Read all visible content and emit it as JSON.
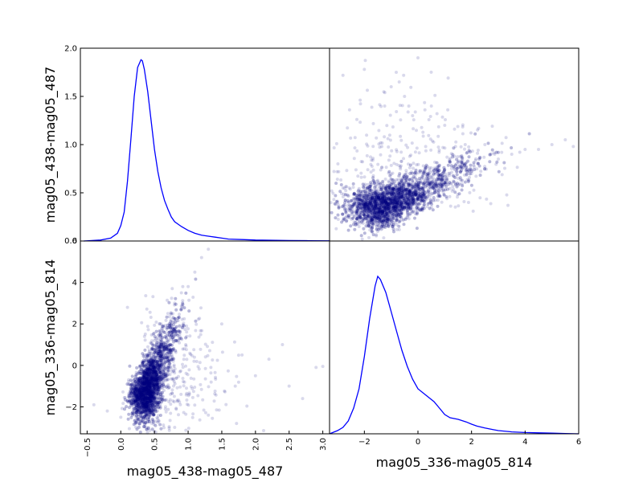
{
  "chart_data": {
    "type": "scatter",
    "layout": "scatter-matrix",
    "variables": [
      "mag05_438-mag05_487",
      "mag05_336-mag05_814"
    ],
    "colors": {
      "kde_line": "#0000ff",
      "points": "#000080",
      "axes": "#000000"
    },
    "point_alpha": 0.15,
    "grid": false,
    "panels": [
      {
        "id": "kde-438-487",
        "position": "top-left",
        "type": "line",
        "description": "kernel density estimate of mag05_438-mag05_487",
        "xlim": [
          -0.6,
          3.1
        ],
        "ylim": [
          0.0,
          2.0
        ],
        "yticks": [
          0.0,
          0.5,
          1.0,
          1.5,
          2.0
        ],
        "ytick_labels": [
          "0.0",
          "0.5",
          "1.0",
          "1.5",
          "2.0"
        ],
        "x": [
          -0.55,
          -0.3,
          -0.15,
          -0.05,
          0.0,
          0.05,
          0.1,
          0.15,
          0.2,
          0.25,
          0.3,
          0.32,
          0.35,
          0.4,
          0.45,
          0.5,
          0.55,
          0.6,
          0.65,
          0.7,
          0.75,
          0.8,
          0.9,
          1.0,
          1.1,
          1.2,
          1.3,
          1.4,
          1.5,
          1.6,
          1.8,
          2.0,
          2.2,
          2.5,
          2.8,
          3.1
        ],
        "y": [
          0.0,
          0.01,
          0.03,
          0.08,
          0.16,
          0.3,
          0.62,
          1.05,
          1.5,
          1.8,
          1.88,
          1.87,
          1.78,
          1.55,
          1.25,
          0.95,
          0.72,
          0.55,
          0.42,
          0.33,
          0.25,
          0.2,
          0.15,
          0.11,
          0.08,
          0.06,
          0.05,
          0.04,
          0.03,
          0.02,
          0.015,
          0.01,
          0.008,
          0.005,
          0.003,
          0.002
        ]
      },
      {
        "id": "scatter-y438-x336",
        "position": "top-right",
        "type": "scatter",
        "xlim": [
          -3.3,
          6.0
        ],
        "ylim": [
          0.0,
          2.0
        ],
        "point_count_approx": 6000,
        "cluster": {
          "x_center": -1.3,
          "y_center": 0.45
        },
        "sample_points": [
          [
            -2.0,
            0.45
          ],
          [
            -1.6,
            0.52
          ],
          [
            -1.2,
            0.55
          ],
          [
            -0.8,
            0.5
          ],
          [
            -0.3,
            0.58
          ],
          [
            0.2,
            0.55
          ],
          [
            0.8,
            0.6
          ],
          [
            1.5,
            0.65
          ],
          [
            2.0,
            0.7
          ],
          [
            2.5,
            0.75
          ],
          [
            3.0,
            0.85
          ],
          [
            3.5,
            0.9
          ],
          [
            4.0,
            0.95
          ],
          [
            4.5,
            0.95
          ],
          [
            5.0,
            1.0
          ],
          [
            5.5,
            1.05
          ],
          [
            5.8,
            0.98
          ],
          [
            -0.2,
            1.3
          ],
          [
            -0.5,
            1.5
          ],
          [
            -1.0,
            1.6
          ],
          [
            0.0,
            1.9
          ],
          [
            -2.0,
            1.78
          ],
          [
            -2.8,
            0.55
          ],
          [
            -3.0,
            0.4
          ],
          [
            -2.2,
            0.15
          ],
          [
            -1.5,
            0.1
          ],
          [
            1.0,
            1.2
          ],
          [
            2.5,
            1.0
          ],
          [
            -0.7,
            1.65
          ],
          [
            0.5,
            1.4
          ]
        ]
      },
      {
        "id": "scatter-y336-x438",
        "position": "bottom-left",
        "type": "scatter",
        "xlim": [
          -0.6,
          3.1
        ],
        "ylim": [
          -3.3,
          6.0
        ],
        "point_count_approx": 6000,
        "xticks": [
          -0.5,
          0.0,
          0.5,
          1.0,
          1.5,
          2.0,
          2.5,
          3.0
        ],
        "xtick_labels": [
          "−0.5",
          "0.0",
          "0.5",
          "1.0",
          "1.5",
          "2.0",
          "2.5",
          "3.0"
        ],
        "yticks": [
          -2,
          0,
          2,
          4
        ],
        "ytick_labels": [
          "−2",
          "0",
          "2",
          "4"
        ],
        "cluster": {
          "x_center": 0.35,
          "y_center": -1.3
        },
        "sample_points": [
          [
            0.2,
            -1.8
          ],
          [
            0.3,
            -1.2
          ],
          [
            0.35,
            -0.5
          ],
          [
            0.4,
            0.5
          ],
          [
            0.5,
            1.2
          ],
          [
            0.6,
            2.0
          ],
          [
            0.7,
            2.5
          ],
          [
            0.8,
            3.0
          ],
          [
            0.9,
            3.5
          ],
          [
            1.0,
            3.8
          ],
          [
            1.1,
            4.5
          ],
          [
            1.2,
            5.2
          ],
          [
            1.3,
            5.6
          ],
          [
            1.5,
            2.0
          ],
          [
            1.8,
            0.5
          ],
          [
            2.0,
            -0.5
          ],
          [
            2.2,
            0.3
          ],
          [
            2.5,
            -1.0
          ],
          [
            2.7,
            -1.6
          ],
          [
            2.9,
            -0.1
          ],
          [
            3.0,
            -0.05
          ],
          [
            0.0,
            -2.5
          ],
          [
            -0.2,
            -2.2
          ],
          [
            -0.4,
            -1.9
          ],
          [
            0.1,
            2.8
          ],
          [
            1.3,
            -2.4
          ],
          [
            1.7,
            -1.0
          ],
          [
            2.4,
            1.0
          ]
        ]
      },
      {
        "id": "kde-336-814",
        "position": "bottom-right",
        "type": "line",
        "description": "kernel density estimate of mag05_336-mag05_814",
        "xlim": [
          -3.3,
          6.0
        ],
        "xticks": [
          -2,
          0,
          2,
          4,
          6
        ],
        "xtick_labels": [
          "−2",
          "0",
          "2",
          "4",
          "6"
        ],
        "x": [
          -3.3,
          -3.0,
          -2.8,
          -2.6,
          -2.4,
          -2.2,
          -2.0,
          -1.8,
          -1.6,
          -1.5,
          -1.4,
          -1.2,
          -1.0,
          -0.8,
          -0.6,
          -0.4,
          -0.2,
          0.0,
          0.3,
          0.6,
          0.8,
          1.0,
          1.2,
          1.5,
          1.8,
          2.0,
          2.2,
          2.5,
          2.8,
          3.0,
          3.5,
          4.0,
          4.5,
          5.0,
          5.5,
          6.0
        ],
        "y": [
          0.0,
          0.01,
          0.02,
          0.04,
          0.08,
          0.14,
          0.24,
          0.36,
          0.46,
          0.49,
          0.48,
          0.44,
          0.38,
          0.32,
          0.26,
          0.21,
          0.17,
          0.14,
          0.12,
          0.1,
          0.08,
          0.06,
          0.05,
          0.045,
          0.037,
          0.03,
          0.024,
          0.018,
          0.013,
          0.01,
          0.006,
          0.004,
          0.003,
          0.002,
          0.001,
          0.0
        ],
        "ylim": [
          0.0,
          0.6
        ]
      }
    ],
    "extra_tick_labels": {
      "top_left_bottom_y": "0.0",
      "bottom_left_top_y": "6"
    },
    "xlabels": [
      "mag05_438-mag05_487",
      "mag05_336-mag05_814"
    ],
    "ylabels": [
      "mag05_438-mag05_487",
      "mag05_336-mag05_814"
    ]
  }
}
